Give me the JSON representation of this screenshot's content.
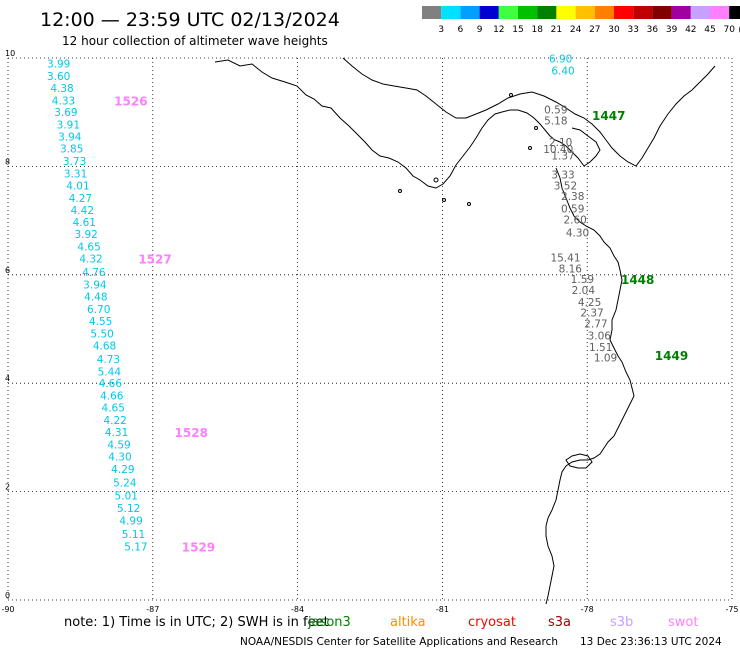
{
  "header": {
    "title": "12:00 — 23:59 UTC 02/13/2024",
    "subtitle": "12 hour collection of altimeter wave heights"
  },
  "legend": {
    "labels": [
      "3",
      "6",
      "9",
      "12",
      "15",
      "18",
      "21",
      "24",
      "27",
      "30",
      "33",
      "36",
      "39",
      "42",
      "45",
      "70"
    ],
    "unit": "(ft)",
    "colors": [
      "#808080",
      "#00e0ff",
      "#00a0ff",
      "#0000d0",
      "#40ff40",
      "#00c000",
      "#008000",
      "#ffff00",
      "#ffc000",
      "#ff8000",
      "#ff0000",
      "#c00000",
      "#800000",
      "#a000a0",
      "#c8a0ff",
      "#ff80ff",
      "#000000"
    ]
  },
  "axes": {
    "lon_labels": [
      "-90",
      "-87",
      "-84",
      "-81",
      "-78",
      "-75"
    ],
    "lat_labels": [
      "10",
      "8",
      "6",
      "4",
      "2",
      "0"
    ],
    "lon_values": [
      -90,
      -87,
      -84,
      -81,
      -78,
      -75
    ],
    "lat_values": [
      10,
      8,
      6,
      4,
      2,
      0
    ],
    "lon_range": [
      -90,
      -75
    ],
    "lat_range": [
      0,
      10
    ]
  },
  "tracks": [
    {
      "pass_label": "1526",
      "label_color": "#ff80ff",
      "color": "#00c8e8",
      "points": [
        {
          "lon": -88.95,
          "lat": 9.9,
          "text": "3.99"
        },
        {
          "lon": -88.95,
          "lat": 9.67,
          "text": "3.60"
        },
        {
          "lon": -88.88,
          "lat": 9.45,
          "text": "4.38"
        },
        {
          "lon": -88.85,
          "lat": 9.22,
          "text": "4.33"
        },
        {
          "lon": -88.8,
          "lat": 9.0,
          "text": "3.69"
        },
        {
          "lon": -88.75,
          "lat": 8.77,
          "text": "3.91"
        },
        {
          "lon": -88.72,
          "lat": 8.55,
          "text": "3.94"
        },
        {
          "lon": -88.68,
          "lat": 8.33,
          "text": "3.85"
        },
        {
          "lon": -88.62,
          "lat": 8.1,
          "text": "3.73"
        },
        {
          "lon": -88.6,
          "lat": 7.87,
          "text": "3.31"
        },
        {
          "lon": -88.55,
          "lat": 7.65,
          "text": "4.01"
        },
        {
          "lon": -88.5,
          "lat": 7.42,
          "text": "4.27"
        },
        {
          "lon": -88.46,
          "lat": 7.2,
          "text": "4.42"
        },
        {
          "lon": -88.42,
          "lat": 6.97,
          "text": "4.61"
        },
        {
          "lon": -88.38,
          "lat": 6.75,
          "text": "3.92"
        },
        {
          "lon": -88.32,
          "lat": 6.52,
          "text": "4.65"
        },
        {
          "lon": -88.28,
          "lat": 6.3,
          "text": "4.32"
        }
      ]
    },
    {
      "pass_label": "1527",
      "label_color": "#ff80ff",
      "color": "#00c8e8",
      "points": [
        {
          "lon": -88.22,
          "lat": 6.05,
          "text": "4.76"
        },
        {
          "lon": -88.2,
          "lat": 5.82,
          "text": "3.94"
        },
        {
          "lon": -88.18,
          "lat": 5.6,
          "text": "4.48"
        },
        {
          "lon": -88.12,
          "lat": 5.37,
          "text": "6.70"
        },
        {
          "lon": -88.08,
          "lat": 5.15,
          "text": "4.55"
        },
        {
          "lon": -88.05,
          "lat": 4.92,
          "text": "5.50"
        },
        {
          "lon": -88.0,
          "lat": 4.7,
          "text": "4.68"
        },
        {
          "lon": -87.92,
          "lat": 4.45,
          "text": "4.73"
        },
        {
          "lon": -87.9,
          "lat": 4.22,
          "text": "5.44"
        },
        {
          "lon": -87.88,
          "lat": 4.0,
          "text": "4.66"
        },
        {
          "lon": -87.85,
          "lat": 3.77,
          "text": "4.66"
        },
        {
          "lon": -87.82,
          "lat": 3.55,
          "text": "4.65"
        },
        {
          "lon": -87.78,
          "lat": 3.32,
          "text": "4.22"
        },
        {
          "lon": -87.75,
          "lat": 3.1,
          "text": "4.31"
        }
      ]
    },
    {
      "pass_label": "1528",
      "label_color": "#ff80ff",
      "color": "#00c8e8",
      "points": [
        {
          "lon": -87.7,
          "lat": 2.87,
          "text": "4.59"
        },
        {
          "lon": -87.68,
          "lat": 2.65,
          "text": "4.30"
        },
        {
          "lon": -87.62,
          "lat": 2.42,
          "text": "4.29"
        },
        {
          "lon": -87.58,
          "lat": 2.17,
          "text": "5.24"
        },
        {
          "lon": -87.55,
          "lat": 1.93,
          "text": "5.01"
        },
        {
          "lon": -87.5,
          "lat": 1.7,
          "text": "5.12"
        },
        {
          "lon": -87.45,
          "lat": 1.47,
          "text": "4.99"
        },
        {
          "lon": -87.4,
          "lat": 1.22,
          "text": "5.11"
        },
        {
          "lon": -87.35,
          "lat": 0.99,
          "text": "5.17"
        }
      ]
    },
    {
      "pass_label": "1529",
      "label_color": "#ff80ff",
      "color": "#00c8e8",
      "points": []
    },
    {
      "pass_label": "1447",
      "label_color": "#008000",
      "color": "#00c8e8",
      "points": [
        {
          "lon": -78.55,
          "lat": 9.99,
          "text": "6.90"
        },
        {
          "lon": -78.5,
          "lat": 9.77,
          "text": "6.40"
        }
      ]
    },
    {
      "pass_label": "1448",
      "label_color": "#008000",
      "color": "#606060",
      "points": [
        {
          "lon": -78.65,
          "lat": 9.05,
          "text": "0.59"
        },
        {
          "lon": -78.65,
          "lat": 8.85,
          "text": "5.18"
        },
        {
          "lon": -78.55,
          "lat": 8.45,
          "text": "2.10"
        },
        {
          "lon": -78.6,
          "lat": 8.32,
          "text": "10.40"
        },
        {
          "lon": -78.5,
          "lat": 8.2,
          "text": "1.37"
        },
        {
          "lon": -78.5,
          "lat": 7.85,
          "text": "3.33"
        },
        {
          "lon": -78.45,
          "lat": 7.65,
          "text": "3.52"
        },
        {
          "lon": -78.3,
          "lat": 7.45,
          "text": "2.38"
        },
        {
          "lon": -78.3,
          "lat": 7.22,
          "text": "0.59"
        },
        {
          "lon": -78.25,
          "lat": 7.02,
          "text": "2.60"
        },
        {
          "lon": -78.2,
          "lat": 6.78,
          "text": "4.30"
        },
        {
          "lon": -78.45,
          "lat": 6.32,
          "text": "15.41"
        },
        {
          "lon": -78.35,
          "lat": 6.12,
          "text": "8.16"
        },
        {
          "lon": -78.1,
          "lat": 5.92,
          "text": "1.59"
        },
        {
          "lon": -78.08,
          "lat": 5.72,
          "text": "2.04"
        },
        {
          "lon": -77.95,
          "lat": 5.5,
          "text": "4.25"
        },
        {
          "lon": -77.9,
          "lat": 5.3,
          "text": "2.37"
        },
        {
          "lon": -77.82,
          "lat": 5.1,
          "text": "2.77"
        },
        {
          "lon": -77.75,
          "lat": 4.88,
          "text": "3.06"
        },
        {
          "lon": -77.72,
          "lat": 4.67,
          "text": "1.51"
        }
      ]
    },
    {
      "pass_label": "1449",
      "label_color": "#008000",
      "color": "#606060",
      "points": [
        {
          "lon": -77.62,
          "lat": 4.47,
          "text": "1.09"
        }
      ]
    }
  ],
  "pass_labels": [
    {
      "text": "1526",
      "lon": -87.8,
      "lat": 9.22,
      "color": "#ff80ff"
    },
    {
      "text": "1527",
      "lon": -87.3,
      "lat": 6.3,
      "color": "#ff80ff"
    },
    {
      "text": "1528",
      "lon": -86.55,
      "lat": 3.1,
      "color": "#ff80ff"
    },
    {
      "text": "1529",
      "lon": -86.4,
      "lat": 0.99,
      "color": "#ff80ff"
    },
    {
      "text": "1447",
      "lon": -77.9,
      "lat": 8.95,
      "color": "#008000"
    },
    {
      "text": "1448",
      "lon": -77.3,
      "lat": 5.92,
      "color": "#008000"
    },
    {
      "text": "1449",
      "lon": -76.6,
      "lat": 4.52,
      "color": "#008000"
    }
  ],
  "footer": {
    "note_prefix": "note:  1) Time is in UTC;  2) SWH is in feet",
    "satellites": [
      {
        "name": "jason3",
        "color": "#008000"
      },
      {
        "name": "altika",
        "color": "#ff8c00"
      },
      {
        "name": "cryosat",
        "color": "#ff0000"
      },
      {
        "name": "s3a",
        "color": "#a00000"
      },
      {
        "name": "s3b",
        "color": "#c8a0ff"
      },
      {
        "name": "swot",
        "color": "#ff80ff"
      }
    ],
    "credit": "NOAA/NESDIS Center for Satellite Applications and Research",
    "timestamp": "13 Dec 23:36:13 UTC 2024"
  }
}
